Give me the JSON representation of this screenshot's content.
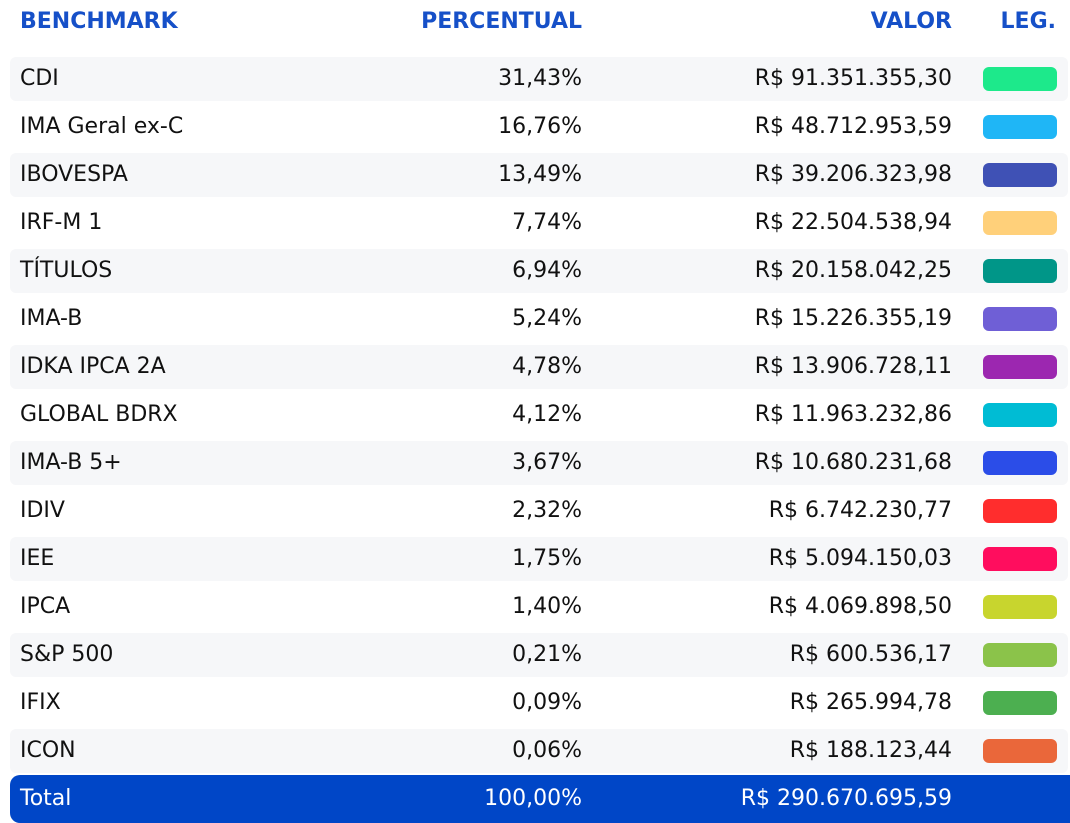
{
  "table": {
    "header": [
      "BENCHMARK",
      "PERCENTUAL",
      "VALOR",
      "LEG."
    ],
    "rows": [
      {
        "name": "CDI",
        "percent": "31,43%",
        "value": "R$ 91.351.355,30",
        "color": "#1de98b"
      },
      {
        "name": "IMA Geral ex-C",
        "percent": "16,76%",
        "value": "R$ 48.712.953,59",
        "color": "#1fb6f6"
      },
      {
        "name": "IBOVESPA",
        "percent": "13,49%",
        "value": "R$ 39.206.323,98",
        "color": "#3f51b5"
      },
      {
        "name": "IRF-M 1",
        "percent": "7,74%",
        "value": "R$ 22.504.538,94",
        "color": "#ffd07a"
      },
      {
        "name": "TÍTULOS",
        "percent": "6,94%",
        "value": "R$ 20.158.042,25",
        "color": "#009688"
      },
      {
        "name": "IMA-B",
        "percent": "5,24%",
        "value": "R$ 15.226.355,19",
        "color": "#6f5fd6"
      },
      {
        "name": "IDKA IPCA 2A",
        "percent": "4,78%",
        "value": "R$ 13.906.728,11",
        "color": "#9c27b0"
      },
      {
        "name": "GLOBAL BDRX",
        "percent": "4,12%",
        "value": "R$ 11.963.232,86",
        "color": "#00bcd4"
      },
      {
        "name": "IMA-B 5+",
        "percent": "3,67%",
        "value": "R$ 10.680.231,68",
        "color": "#2b4de8"
      },
      {
        "name": "IDIV",
        "percent": "2,32%",
        "value": "R$ 6.742.230,77",
        "color": "#ff2d2d"
      },
      {
        "name": "IEE",
        "percent": "1,75%",
        "value": "R$ 5.094.150,03",
        "color": "#ff0d5e"
      },
      {
        "name": "IPCA",
        "percent": "1,40%",
        "value": "R$ 4.069.898,50",
        "color": "#c8d52e"
      },
      {
        "name": "S&P 500",
        "percent": "0,21%",
        "value": "R$ 600.536,17",
        "color": "#8bc34a"
      },
      {
        "name": "IFIX",
        "percent": "0,09%",
        "value": "R$ 265.994,78",
        "color": "#4caf50"
      },
      {
        "name": "ICON",
        "percent": "0,06%",
        "value": "R$ 188.123,44",
        "color": "#ea673a"
      }
    ],
    "total": {
      "name": "Total",
      "percent": "100,00%",
      "value": "R$ 290.670.695,59"
    }
  }
}
